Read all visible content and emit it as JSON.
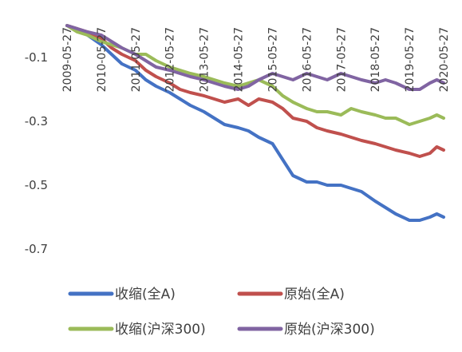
{
  "chart_data": {
    "type": "line",
    "title": "",
    "xlabel": "",
    "ylabel": "",
    "ylim": [
      -0.78,
      0.0
    ],
    "yticks": [
      -0.1,
      -0.3,
      -0.5,
      -0.7
    ],
    "ytick_labels": [
      "-0.1",
      "-0.3",
      "-0.5",
      "-0.7"
    ],
    "xlim": [
      2009.4,
      2020.4
    ],
    "xticks": [
      2009.4,
      2010.4,
      2011.4,
      2012.4,
      2013.4,
      2014.4,
      2015.4,
      2016.4,
      2017.4,
      2018.4,
      2019.4,
      2020.4
    ],
    "xtick_labels": [
      "2009-05-27",
      "2010-05-27",
      "2011-05-27",
      "2012-05-27",
      "2013-05-27",
      "2014-05-27",
      "2015-05-27",
      "2016-05-27",
      "2017-05-27",
      "2018-05-27",
      "2019-05-27",
      "2020-05-27"
    ],
    "grid": "none",
    "legend_position": "bottom",
    "series": [
      {
        "name": "收缩(全A)",
        "color": "#4472C4",
        "x": [
          2009.4,
          2009.7,
          2010.0,
          2010.4,
          2010.7,
          2011.0,
          2011.4,
          2011.7,
          2012.0,
          2012.4,
          2012.7,
          2013.0,
          2013.4,
          2013.7,
          2014.0,
          2014.4,
          2014.7,
          2015.0,
          2015.4,
          2015.7,
          2016.0,
          2016.4,
          2016.7,
          2017.0,
          2017.4,
          2017.7,
          2018.0,
          2018.4,
          2018.7,
          2019.0,
          2019.4,
          2019.7,
          2020.0,
          2020.2,
          2020.4
        ],
        "values": [
          0.0,
          -0.01,
          -0.03,
          -0.06,
          -0.09,
          -0.12,
          -0.14,
          -0.17,
          -0.19,
          -0.21,
          -0.23,
          -0.25,
          -0.27,
          -0.29,
          -0.31,
          -0.32,
          -0.33,
          -0.35,
          -0.37,
          -0.42,
          -0.47,
          -0.49,
          -0.49,
          -0.5,
          -0.5,
          -0.51,
          -0.52,
          -0.55,
          -0.57,
          -0.59,
          -0.61,
          -0.61,
          -0.6,
          -0.59,
          -0.6
        ]
      },
      {
        "name": "原始(全A)",
        "color": "#C0504D",
        "x": [
          2009.4,
          2009.7,
          2010.0,
          2010.4,
          2010.7,
          2011.0,
          2011.4,
          2011.7,
          2012.0,
          2012.4,
          2012.7,
          2013.0,
          2013.4,
          2013.7,
          2014.0,
          2014.4,
          2014.7,
          2015.0,
          2015.4,
          2015.7,
          2016.0,
          2016.4,
          2016.7,
          2017.0,
          2017.4,
          2017.7,
          2018.0,
          2018.4,
          2018.7,
          2019.0,
          2019.4,
          2019.7,
          2020.0,
          2020.2,
          2020.4
        ],
        "values": [
          0.0,
          -0.01,
          -0.02,
          -0.04,
          -0.07,
          -0.09,
          -0.11,
          -0.14,
          -0.16,
          -0.18,
          -0.2,
          -0.21,
          -0.22,
          -0.23,
          -0.24,
          -0.23,
          -0.25,
          -0.23,
          -0.24,
          -0.26,
          -0.29,
          -0.3,
          -0.32,
          -0.33,
          -0.34,
          -0.35,
          -0.36,
          -0.37,
          -0.38,
          -0.39,
          -0.4,
          -0.41,
          -0.4,
          -0.38,
          -0.39
        ]
      },
      {
        "name": "收缩(沪深300)",
        "color": "#9BBB59",
        "x": [
          2009.4,
          2009.7,
          2010.0,
          2010.4,
          2010.7,
          2011.0,
          2011.4,
          2011.7,
          2012.0,
          2012.4,
          2012.7,
          2013.0,
          2013.4,
          2013.7,
          2014.0,
          2014.4,
          2014.7,
          2015.0,
          2015.4,
          2015.7,
          2016.0,
          2016.4,
          2016.7,
          2017.0,
          2017.4,
          2017.7,
          2018.0,
          2018.4,
          2018.7,
          2019.0,
          2019.4,
          2019.7,
          2020.0,
          2020.2,
          2020.4
        ],
        "values": [
          0.0,
          -0.02,
          -0.03,
          -0.05,
          -0.06,
          -0.07,
          -0.09,
          -0.09,
          -0.11,
          -0.13,
          -0.14,
          -0.15,
          -0.16,
          -0.17,
          -0.18,
          -0.19,
          -0.18,
          -0.17,
          -0.19,
          -0.22,
          -0.24,
          -0.26,
          -0.27,
          -0.27,
          -0.28,
          -0.26,
          -0.27,
          -0.28,
          -0.29,
          -0.29,
          -0.31,
          -0.3,
          -0.29,
          -0.28,
          -0.29
        ]
      },
      {
        "name": "原始(沪深300)",
        "color": "#8064A2",
        "x": [
          2009.4,
          2009.7,
          2010.0,
          2010.4,
          2010.7,
          2011.0,
          2011.4,
          2011.7,
          2012.0,
          2012.4,
          2012.7,
          2013.0,
          2013.4,
          2013.7,
          2014.0,
          2014.4,
          2014.7,
          2015.0,
          2015.4,
          2015.7,
          2016.0,
          2016.4,
          2016.7,
          2017.0,
          2017.4,
          2017.7,
          2018.0,
          2018.4,
          2018.7,
          2019.0,
          2019.4,
          2019.7,
          2020.0,
          2020.2,
          2020.4
        ],
        "values": [
          0.0,
          -0.01,
          -0.02,
          -0.03,
          -0.05,
          -0.07,
          -0.09,
          -0.11,
          -0.13,
          -0.14,
          -0.15,
          -0.16,
          -0.17,
          -0.18,
          -0.19,
          -0.2,
          -0.19,
          -0.17,
          -0.15,
          -0.16,
          -0.17,
          -0.15,
          -0.16,
          -0.17,
          -0.15,
          -0.16,
          -0.17,
          -0.18,
          -0.17,
          -0.18,
          -0.2,
          -0.2,
          -0.18,
          -0.17,
          -0.18
        ]
      }
    ]
  }
}
